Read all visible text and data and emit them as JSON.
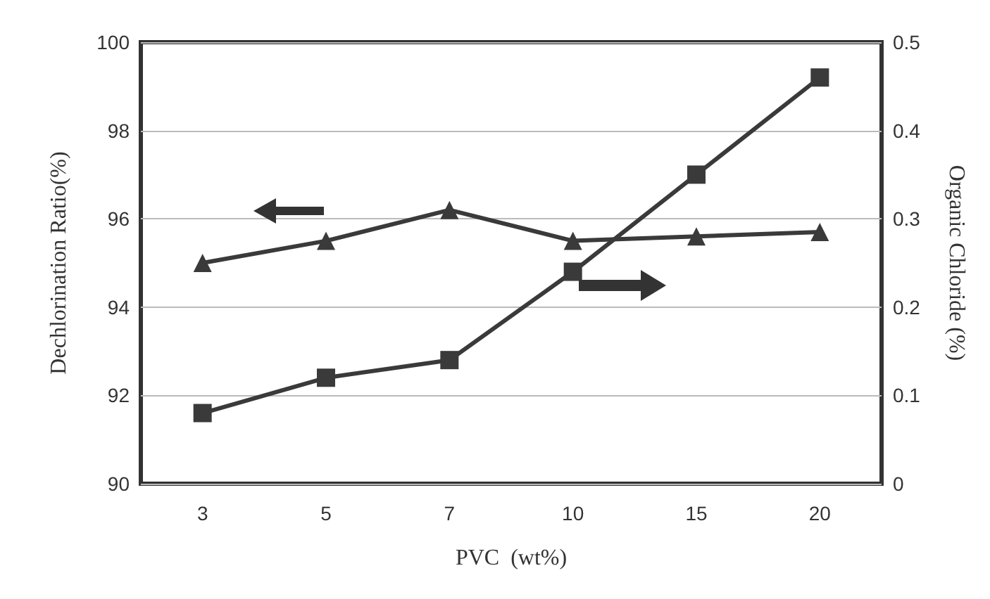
{
  "chart_data": {
    "type": "line",
    "xlabel": "PVC  (wt%)",
    "ylabel": "Dechlorination Ratio(%)",
    "y2label": "Organic Chloride (%)",
    "categories": [
      "3",
      "5",
      "7",
      "10",
      "15",
      "20"
    ],
    "series": [
      {
        "color": "#3a3a3a",
        "marker": "triangle",
        "values": [
          95.0,
          95.5,
          96.2,
          95.5,
          95.6,
          95.7
        ]
      },
      {
        "color": "#3a3a3a",
        "marker": "square",
        "axis": "y2",
        "values": [
          0.08,
          0.12,
          0.14,
          0.24,
          0.35,
          0.46
        ]
      }
    ],
    "ylim": [
      90,
      100
    ],
    "yticks": [
      90,
      92,
      94,
      96,
      98,
      100
    ],
    "y2lim": [
      0,
      0.5
    ],
    "y2ticks": [
      0,
      0.1,
      0.2,
      0.3,
      0.4,
      0.5
    ],
    "grid": "y",
    "line_style": "solid"
  }
}
